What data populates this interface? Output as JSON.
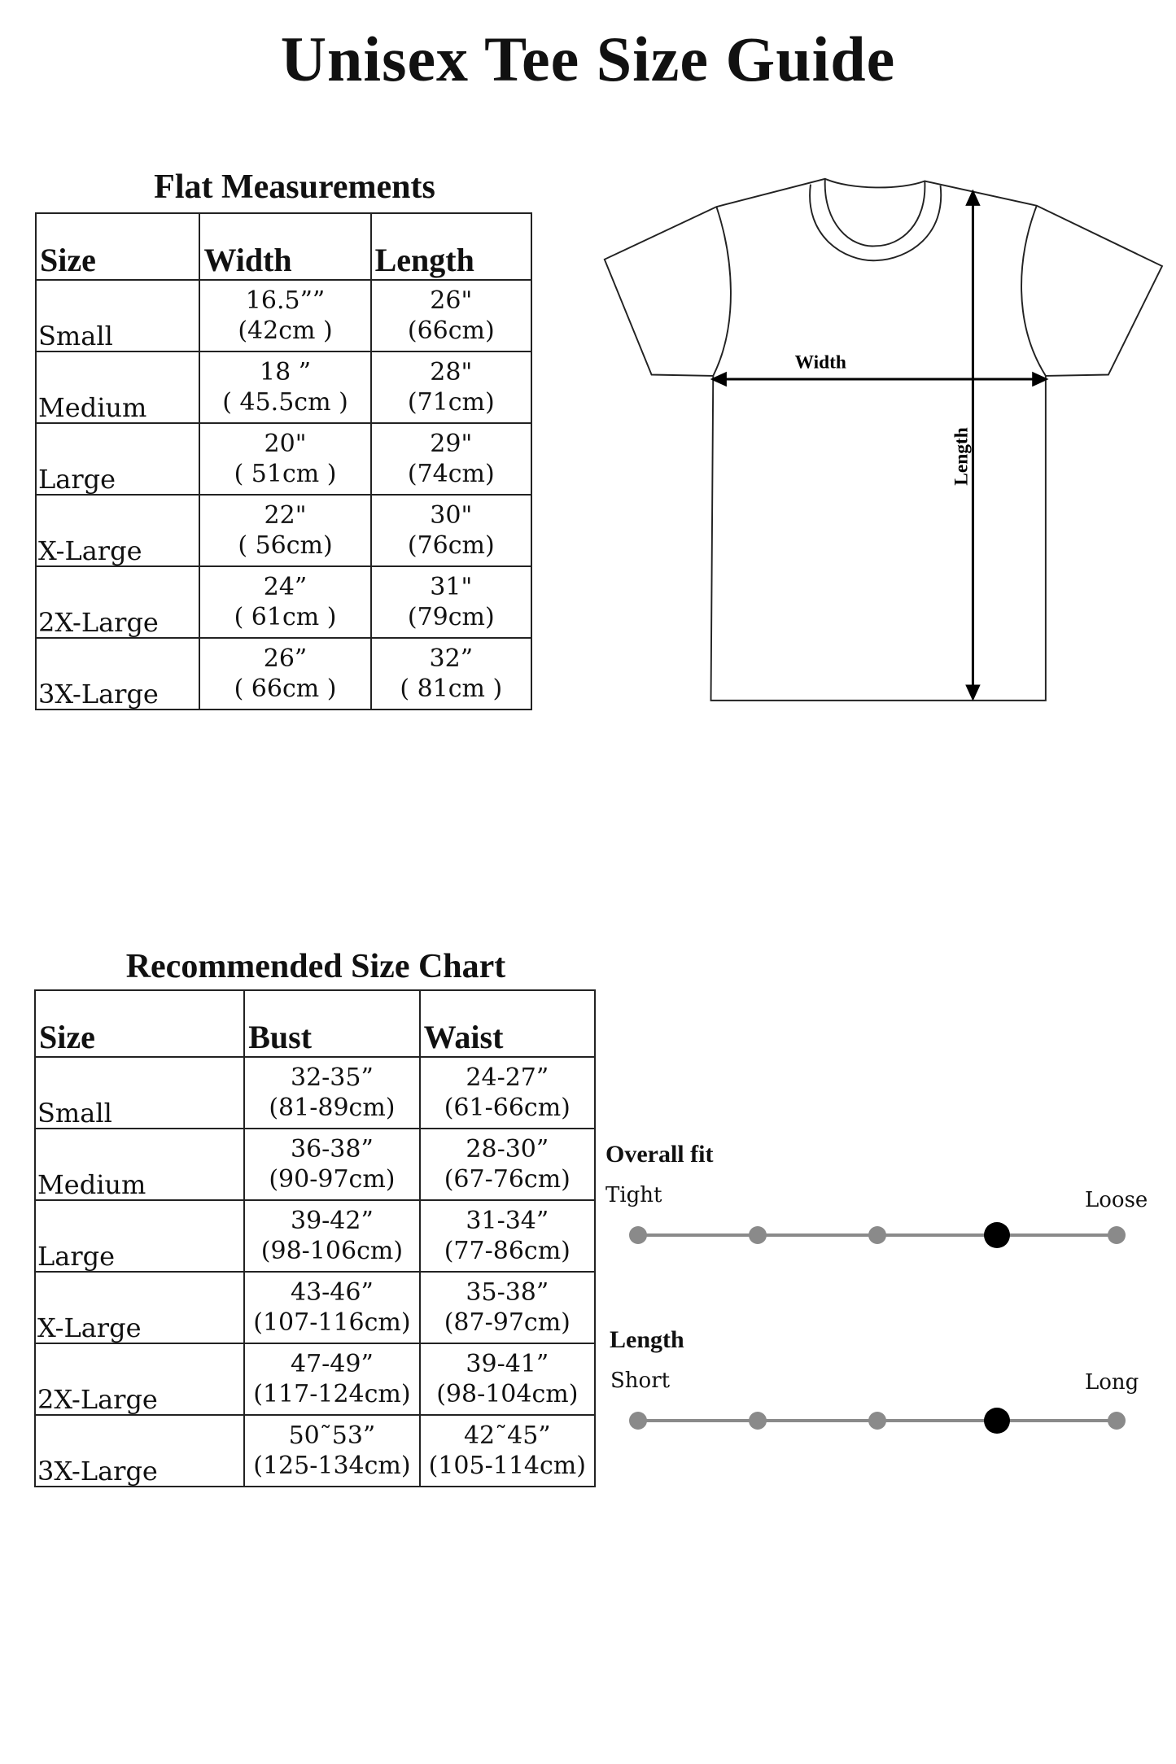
{
  "title": "Unisex Tee Size Guide",
  "flat": {
    "heading": "Flat Measurements",
    "columns": [
      "Size",
      "Width",
      "Length"
    ],
    "rows": [
      {
        "size": "Small",
        "width_in": "16.5””",
        "width_cm": "(42cm )",
        "length_in": "26\"",
        "length_cm": "(66cm)"
      },
      {
        "size": "Medium",
        "width_in": "18 ”",
        "width_cm": "( 45.5cm )",
        "length_in": "28\"",
        "length_cm": "(71cm)"
      },
      {
        "size": "Large",
        "width_in": "20\"",
        "width_cm": "( 51cm )",
        "length_in": "29\"",
        "length_cm": "(74cm)"
      },
      {
        "size": "X-Large",
        "width_in": "22\"",
        "width_cm": "( 56cm)",
        "length_in": "30\"",
        "length_cm": "(76cm)"
      },
      {
        "size": "2X-Large",
        "width_in": "24”",
        "width_cm": "( 61cm )",
        "length_in": "31\"",
        "length_cm": "(79cm)"
      },
      {
        "size": "3X-Large",
        "width_in": "26”",
        "width_cm": "( 66cm )",
        "length_in": "32”",
        "length_cm": "( 81cm )"
      }
    ]
  },
  "diagram": {
    "width_label": "Width",
    "length_label": "Length"
  },
  "recommended": {
    "heading": "Recommended Size Chart",
    "columns": [
      "Size",
      "Bust",
      "Waist"
    ],
    "rows": [
      {
        "size": "Small",
        "bust_in": "32-35”",
        "bust_cm": "(81-89cm)",
        "waist_in": "24-27”",
        "waist_cm": "(61-66cm)"
      },
      {
        "size": "Medium",
        "bust_in": "36-38”",
        "bust_cm": "(90-97cm)",
        "waist_in": "28-30”",
        "waist_cm": "(67-76cm)"
      },
      {
        "size": "Large",
        "bust_in": "39-42”",
        "bust_cm": "(98-106cm)",
        "waist_in": "31-34”",
        "waist_cm": "(77-86cm)"
      },
      {
        "size": "X-Large",
        "bust_in": "43-46”",
        "bust_cm": "(107-116cm)",
        "waist_in": "35-38”",
        "waist_cm": "(87-97cm)"
      },
      {
        "size": "2X-Large",
        "bust_in": "47-49”",
        "bust_cm": "(117-124cm)",
        "waist_in": "39-41”",
        "waist_cm": "(98-104cm)"
      },
      {
        "size": "3X-Large",
        "bust_in": "50˜53”",
        "bust_cm": "(125-134cm)",
        "waist_in": "42˜45”",
        "waist_cm": "(105-114cm)"
      }
    ]
  },
  "fit": {
    "overall": {
      "label": "Overall fit",
      "min_label": "Tight",
      "max_label": "Loose",
      "steps": 5,
      "selected": 4
    },
    "length": {
      "label": "Length",
      "min_label": "Short",
      "max_label": "Long",
      "steps": 5,
      "selected": 4
    },
    "colors": {
      "track": "#8a8a8a",
      "selected": "#000000"
    }
  }
}
